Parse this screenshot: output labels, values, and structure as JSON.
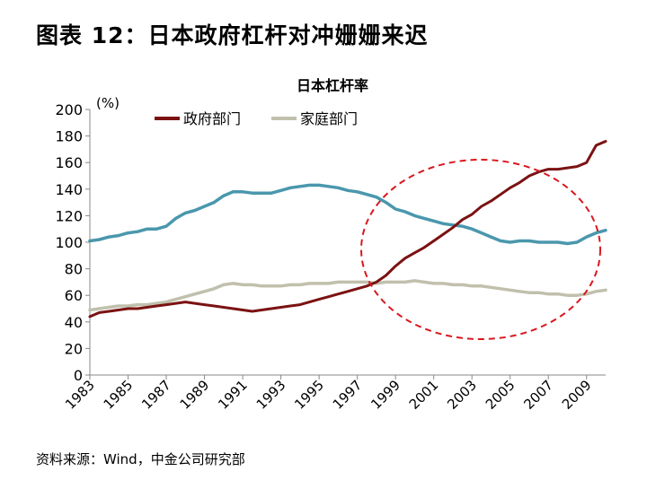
{
  "figure": {
    "title": "图表 12：日本政府杠杆对冲姗姗来迟",
    "source": "资料来源：Wind，中金公司研究部"
  },
  "colors": {
    "government": "#7b1212",
    "household": "#c0c0ad",
    "series3": "#4a97ad",
    "annotation": "#d9171e",
    "axis": "#888888"
  },
  "chart_data": {
    "type": "line",
    "title": "日本杠杆率",
    "yunit": "(%)",
    "ylim": [
      0,
      200
    ],
    "yticks": [
      0,
      20,
      40,
      60,
      80,
      100,
      120,
      140,
      160,
      180,
      200
    ],
    "xlim": [
      1983,
      2010
    ],
    "xticks": [
      "1983",
      "1985",
      "1987",
      "1989",
      "1991",
      "1993",
      "1995",
      "1997",
      "1999",
      "2001",
      "2003",
      "2005",
      "2007",
      "2009"
    ],
    "grid": false,
    "legend": "top",
    "annotation": "dashed red ellipse around 1998–2008 crossover",
    "series": [
      {
        "name": "政府部门",
        "color": "#7b1212",
        "x": [
          1983,
          1983.5,
          1984,
          1984.5,
          1985,
          1985.5,
          1986,
          1986.5,
          1987,
          1987.5,
          1988,
          1988.5,
          1989,
          1989.5,
          1990,
          1990.5,
          1991,
          1991.5,
          1992,
          1992.5,
          1993,
          1993.5,
          1994,
          1994.5,
          1995,
          1995.5,
          1996,
          1996.5,
          1997,
          1997.5,
          1998,
          1998.5,
          1999,
          1999.5,
          2000,
          2000.5,
          2001,
          2001.5,
          2002,
          2002.5,
          2003,
          2003.5,
          2004,
          2004.5,
          2005,
          2005.5,
          2006,
          2006.5,
          2007,
          2007.5,
          2008,
          2008.5,
          2009,
          2009.5,
          2010
        ],
        "values": [
          44,
          47,
          48,
          49,
          50,
          50,
          51,
          52,
          53,
          54,
          55,
          54,
          53,
          52,
          51,
          50,
          49,
          48,
          49,
          50,
          51,
          52,
          53,
          55,
          57,
          59,
          61,
          63,
          65,
          67,
          70,
          75,
          82,
          88,
          92,
          96,
          101,
          106,
          111,
          117,
          121,
          127,
          131,
          136,
          141,
          145,
          150,
          153,
          155,
          155,
          156,
          157,
          160,
          173,
          176
        ]
      },
      {
        "name": "家庭部门",
        "color": "#c0c0ad",
        "x": [
          1983,
          1983.5,
          1984,
          1984.5,
          1985,
          1985.5,
          1986,
          1986.5,
          1987,
          1987.5,
          1988,
          1988.5,
          1989,
          1989.5,
          1990,
          1990.5,
          1991,
          1991.5,
          1992,
          1992.5,
          1993,
          1993.5,
          1994,
          1994.5,
          1995,
          1995.5,
          1996,
          1996.5,
          1997,
          1997.5,
          1998,
          1998.5,
          1999,
          1999.5,
          2000,
          2000.5,
          2001,
          2001.5,
          2002,
          2002.5,
          2003,
          2003.5,
          2004,
          2004.5,
          2005,
          2005.5,
          2006,
          2006.5,
          2007,
          2007.5,
          2008,
          2008.5,
          2009,
          2009.5,
          2010
        ],
        "values": [
          49,
          50,
          51,
          52,
          52,
          53,
          53,
          54,
          55,
          57,
          59,
          61,
          63,
          65,
          68,
          69,
          68,
          68,
          67,
          67,
          67,
          68,
          68,
          69,
          69,
          69,
          70,
          70,
          70,
          70,
          69,
          70,
          70,
          70,
          71,
          70,
          69,
          69,
          68,
          68,
          67,
          67,
          66,
          65,
          64,
          63,
          62,
          62,
          61,
          61,
          60,
          60,
          61,
          63,
          64
        ]
      },
      {
        "name": "",
        "color": "#4a97ad",
        "x": [
          1983,
          1983.5,
          1984,
          1984.5,
          1985,
          1985.5,
          1986,
          1986.5,
          1987,
          1987.5,
          1988,
          1988.5,
          1989,
          1989.5,
          1990,
          1990.5,
          1991,
          1991.5,
          1992,
          1992.5,
          1993,
          1993.5,
          1994,
          1994.5,
          1995,
          1995.5,
          1996,
          1996.5,
          1997,
          1997.5,
          1998,
          1998.5,
          1999,
          1999.5,
          2000,
          2000.5,
          2001,
          2001.5,
          2002,
          2002.5,
          2003,
          2003.5,
          2004,
          2004.5,
          2005,
          2005.5,
          2006,
          2006.5,
          2007,
          2007.5,
          2008,
          2008.5,
          2009,
          2009.5,
          2010
        ],
        "values": [
          101,
          102,
          104,
          105,
          107,
          108,
          110,
          110,
          112,
          118,
          122,
          124,
          127,
          130,
          135,
          138,
          138,
          137,
          137,
          137,
          139,
          141,
          142,
          143,
          143,
          142,
          141,
          139,
          138,
          136,
          134,
          130,
          125,
          123,
          120,
          118,
          116,
          114,
          113,
          112,
          110,
          107,
          104,
          101,
          100,
          101,
          101,
          100,
          100,
          100,
          99,
          100,
          104,
          107,
          109
        ]
      }
    ]
  }
}
